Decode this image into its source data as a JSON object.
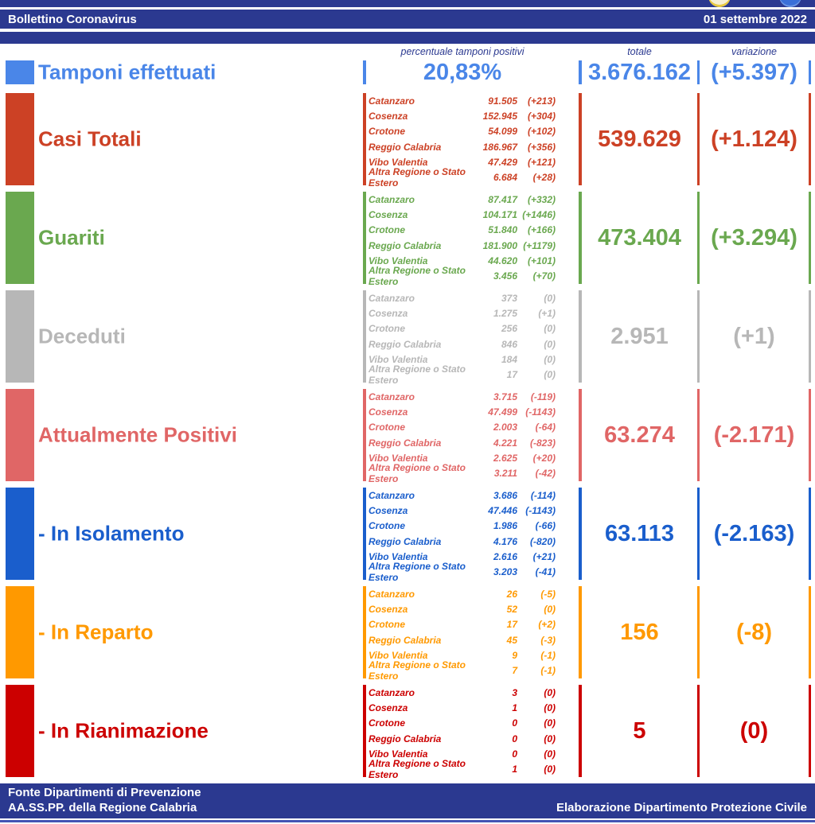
{
  "header": {
    "title": "Bollettino Coronavirus",
    "date": "01 settembre 2022"
  },
  "columns": {
    "detail_header": "percentuale tamponi positivi",
    "total_header": "totale",
    "variation_header": "variazione"
  },
  "palette": {
    "navy": "#2b3990",
    "tamponi_blue": "#4a86e8",
    "casi_red": "#cc4125",
    "guariti_green": "#6aa84f",
    "deceduti_gray": "#b7b7b7",
    "positivi_salmon": "#e06666",
    "isolamento_blue": "#1a5ecc",
    "reparto_orange": "#ff9900",
    "rianimazione_red": "#cc0000"
  },
  "rows": [
    {
      "id": "tamponi-effettuati",
      "label": "Tamponi effettuati",
      "color": "#4a86e8",
      "percentage": "20,83%",
      "total": "3.676.162",
      "variation": "(+5.397)"
    },
    {
      "id": "casi-totali",
      "label": "Casi Totali",
      "color": "#cc4125",
      "total": "539.629",
      "variation": "(+1.124)",
      "details": [
        {
          "name": "Catanzaro",
          "value": "91.505",
          "delta": "(+213)"
        },
        {
          "name": "Cosenza",
          "value": "152.945",
          "delta": "(+304)"
        },
        {
          "name": "Crotone",
          "value": "54.099",
          "delta": "(+102)"
        },
        {
          "name": "Reggio Calabria",
          "value": "186.967",
          "delta": "(+356)"
        },
        {
          "name": "Vibo Valentia",
          "value": "47.429",
          "delta": "(+121)"
        },
        {
          "name": "Altra Regione o Stato Estero",
          "value": "6.684",
          "delta": "(+28)"
        }
      ]
    },
    {
      "id": "guariti",
      "label": "Guariti",
      "color": "#6aa84f",
      "total": "473.404",
      "variation": "(+3.294)",
      "details": [
        {
          "name": "Catanzaro",
          "value": "87.417",
          "delta": "(+332)"
        },
        {
          "name": "Cosenza",
          "value": "104.171",
          "delta": "(+1446)"
        },
        {
          "name": "Crotone",
          "value": "51.840",
          "delta": "(+166)"
        },
        {
          "name": "Reggio Calabria",
          "value": "181.900",
          "delta": "(+1179)"
        },
        {
          "name": "Vibo Valentia",
          "value": "44.620",
          "delta": "(+101)"
        },
        {
          "name": "Altra Regione o Stato Estero",
          "value": "3.456",
          "delta": "(+70)"
        }
      ]
    },
    {
      "id": "deceduti",
      "label": "Deceduti",
      "color": "#b7b7b7",
      "total": "2.951",
      "variation": "(+1)",
      "details": [
        {
          "name": "Catanzaro",
          "value": "373",
          "delta": "(0)"
        },
        {
          "name": "Cosenza",
          "value": "1.275",
          "delta": "(+1)"
        },
        {
          "name": "Crotone",
          "value": "256",
          "delta": "(0)"
        },
        {
          "name": "Reggio Calabria",
          "value": "846",
          "delta": "(0)"
        },
        {
          "name": "Vibo Valentia",
          "value": "184",
          "delta": "(0)"
        },
        {
          "name": "Altra Regione o Stato Estero",
          "value": "17",
          "delta": "(0)"
        }
      ]
    },
    {
      "id": "attualmente-positivi",
      "label": "Attualmente Positivi",
      "color": "#e06666",
      "total": "63.274",
      "variation": "(-2.171)",
      "details": [
        {
          "name": "Catanzaro",
          "value": "3.715",
          "delta": "(-119)"
        },
        {
          "name": "Cosenza",
          "value": "47.499",
          "delta": "(-1143)"
        },
        {
          "name": "Crotone",
          "value": "2.003",
          "delta": "(-64)"
        },
        {
          "name": "Reggio Calabria",
          "value": "4.221",
          "delta": "(-823)"
        },
        {
          "name": "Vibo Valentia",
          "value": "2.625",
          "delta": "(+20)"
        },
        {
          "name": "Altra Regione o Stato Estero",
          "value": "3.211",
          "delta": "(-42)"
        }
      ]
    },
    {
      "id": "in-isolamento",
      "label": "- In Isolamento",
      "color": "#1a5ecc",
      "total": "63.113",
      "variation": "(-2.163)",
      "details": [
        {
          "name": "Catanzaro",
          "value": "3.686",
          "delta": "(-114)"
        },
        {
          "name": "Cosenza",
          "value": "47.446",
          "delta": "(-1143)"
        },
        {
          "name": "Crotone",
          "value": "1.986",
          "delta": "(-66)"
        },
        {
          "name": "Reggio Calabria",
          "value": "4.176",
          "delta": "(-820)"
        },
        {
          "name": "Vibo Valentia",
          "value": "2.616",
          "delta": "(+21)"
        },
        {
          "name": "Altra Regione o Stato Estero",
          "value": "3.203",
          "delta": "(-41)"
        }
      ]
    },
    {
      "id": "in-reparto",
      "label": "- In Reparto",
      "color": "#ff9900",
      "total": "156",
      "variation": "(-8)",
      "details": [
        {
          "name": "Catanzaro",
          "value": "26",
          "delta": "(-5)"
        },
        {
          "name": "Cosenza",
          "value": "52",
          "delta": "(0)"
        },
        {
          "name": "Crotone",
          "value": "17",
          "delta": "(+2)"
        },
        {
          "name": "Reggio Calabria",
          "value": "45",
          "delta": "(-3)"
        },
        {
          "name": "Vibo Valentia",
          "value": "9",
          "delta": "(-1)"
        },
        {
          "name": "Altra Regione o Stato Estero",
          "value": "7",
          "delta": "(-1)"
        }
      ]
    },
    {
      "id": "in-rianimazione",
      "label": "- In Rianimazione",
      "color": "#cc0000",
      "total": "5",
      "variation": "(0)",
      "details": [
        {
          "name": "Catanzaro",
          "value": "3",
          "delta": "(0)"
        },
        {
          "name": "Cosenza",
          "value": "1",
          "delta": "(0)"
        },
        {
          "name": "Crotone",
          "value": "0",
          "delta": "(0)"
        },
        {
          "name": "Reggio Calabria",
          "value": "0",
          "delta": "(0)"
        },
        {
          "name": "Vibo Valentia",
          "value": "0",
          "delta": "(0)"
        },
        {
          "name": "Altra Regione o Stato Estero",
          "value": "1",
          "delta": "(0)"
        }
      ]
    }
  ],
  "footer": {
    "line1": "Fonte Dipartimenti di Prevenzione",
    "line2": "AA.SS.PP. della Regione Calabria",
    "right": "Elaborazione Dipartimento Protezione Civile"
  }
}
